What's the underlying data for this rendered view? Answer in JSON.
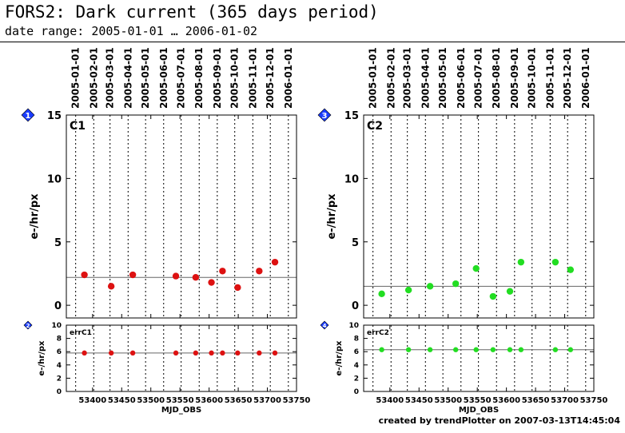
{
  "page": {
    "title": "FORS2: Dark current (365 days period)",
    "subtitle": "date range: 2005-01-01 … 2006-01-02",
    "credit": "created by trendPlotter on 2007-03-13T14:45:04"
  },
  "colors": {
    "c1_marker": "#dd1111",
    "c2_marker": "#22dd22",
    "reference_line": "#666666",
    "badge_fill": "#1a3cff"
  },
  "chart_data": [
    {
      "type": "scatter",
      "badge": "1",
      "label": "C1",
      "ylabel": "e-/hr/px",
      "xlabel": "",
      "xlim": [
        53355,
        53750
      ],
      "ylim": [
        -1,
        15
      ],
      "yticks": [
        0,
        5,
        10,
        15
      ],
      "xticks": [
        53400,
        53450,
        53500,
        53550,
        53600,
        53650,
        53700,
        53750
      ],
      "date_ticks": [
        {
          "label": "2005-01-01",
          "mjd": 53371
        },
        {
          "label": "2005-02-01",
          "mjd": 53402
        },
        {
          "label": "2005-03-01",
          "mjd": 53430
        },
        {
          "label": "2005-04-01",
          "mjd": 53461
        },
        {
          "label": "2005-05-01",
          "mjd": 53491
        },
        {
          "label": "2005-06-01",
          "mjd": 53522
        },
        {
          "label": "2005-07-01",
          "mjd": 53552
        },
        {
          "label": "2005-08-01",
          "mjd": 53583
        },
        {
          "label": "2005-09-01",
          "mjd": 53614
        },
        {
          "label": "2005-10-01",
          "mjd": 53644
        },
        {
          "label": "2005-11-01",
          "mjd": 53675
        },
        {
          "label": "2005-12-01",
          "mjd": 53705
        },
        {
          "label": "2006-01-01",
          "mjd": 53736
        }
      ],
      "reference_line": 2.2,
      "grid": "vertical dotted",
      "x": [
        53386,
        53432,
        53469,
        53543,
        53577,
        53604,
        53623,
        53649,
        53686,
        53713
      ],
      "y": [
        2.4,
        1.5,
        2.4,
        2.3,
        2.2,
        1.8,
        2.7,
        1.4,
        2.7,
        3.4
      ]
    },
    {
      "type": "scatter",
      "badge": "3",
      "label": "C2",
      "ylabel": "e-/hr/px",
      "xlabel": "",
      "xlim": [
        53355,
        53750
      ],
      "ylim": [
        -1,
        15
      ],
      "yticks": [
        0,
        5,
        10,
        15
      ],
      "xticks": [
        53400,
        53450,
        53500,
        53550,
        53600,
        53650,
        53700,
        53750
      ],
      "date_ticks": [
        {
          "label": "2005-01-01",
          "mjd": 53371
        },
        {
          "label": "2005-02-01",
          "mjd": 53402
        },
        {
          "label": "2005-03-01",
          "mjd": 53430
        },
        {
          "label": "2005-04-01",
          "mjd": 53461
        },
        {
          "label": "2005-05-01",
          "mjd": 53491
        },
        {
          "label": "2005-06-01",
          "mjd": 53522
        },
        {
          "label": "2005-07-01",
          "mjd": 53552
        },
        {
          "label": "2005-08-01",
          "mjd": 53583
        },
        {
          "label": "2005-09-01",
          "mjd": 53614
        },
        {
          "label": "2005-10-01",
          "mjd": 53644
        },
        {
          "label": "2005-11-01",
          "mjd": 53675
        },
        {
          "label": "2005-12-01",
          "mjd": 53705
        },
        {
          "label": "2006-01-01",
          "mjd": 53736
        }
      ],
      "reference_line": 1.5,
      "grid": "vertical dotted",
      "x": [
        53386,
        53432,
        53469,
        53513,
        53548,
        53577,
        53606,
        53625,
        53684,
        53710
      ],
      "y": [
        0.9,
        1.2,
        1.5,
        1.7,
        2.9,
        0.7,
        1.1,
        3.4,
        3.4,
        2.8
      ]
    },
    {
      "type": "scatter",
      "badge": "2",
      "label": "errC1",
      "ylabel": "e-/hr/px",
      "xlabel": "MJD_OBS",
      "xlim": [
        53355,
        53750
      ],
      "ylim": [
        0,
        10
      ],
      "yticks": [
        0,
        2,
        4,
        6,
        8,
        10
      ],
      "ytick_labels": [
        "0",
        "2",
        "4",
        "6",
        "8",
        "10"
      ],
      "xticks": [
        53400,
        53450,
        53500,
        53550,
        53600,
        53650,
        53700,
        53750
      ],
      "reference_line": 5.8,
      "grid": "vertical dotted",
      "x": [
        53386,
        53432,
        53469,
        53543,
        53577,
        53604,
        53623,
        53649,
        53686,
        53713
      ],
      "y": [
        5.8,
        5.8,
        5.8,
        5.8,
        5.8,
        5.8,
        5.8,
        5.8,
        5.8,
        5.8
      ]
    },
    {
      "type": "scatter",
      "badge": "4",
      "label": "errC2",
      "ylabel": "e-/hr/px",
      "xlabel": "MJD_OBS",
      "xlim": [
        53355,
        53750
      ],
      "ylim": [
        0,
        10
      ],
      "yticks": [
        0,
        2,
        4,
        6,
        8,
        10
      ],
      "ytick_labels": [
        "0",
        "2",
        "4",
        "6",
        "8",
        "10"
      ],
      "xticks": [
        53400,
        53450,
        53500,
        53550,
        53600,
        53650,
        53700,
        53750
      ],
      "reference_line": 6.3,
      "grid": "vertical dotted",
      "x": [
        53386,
        53432,
        53469,
        53513,
        53548,
        53577,
        53606,
        53625,
        53684,
        53710
      ],
      "y": [
        6.3,
        6.3,
        6.3,
        6.3,
        6.3,
        6.3,
        6.3,
        6.3,
        6.3,
        6.3
      ]
    }
  ]
}
